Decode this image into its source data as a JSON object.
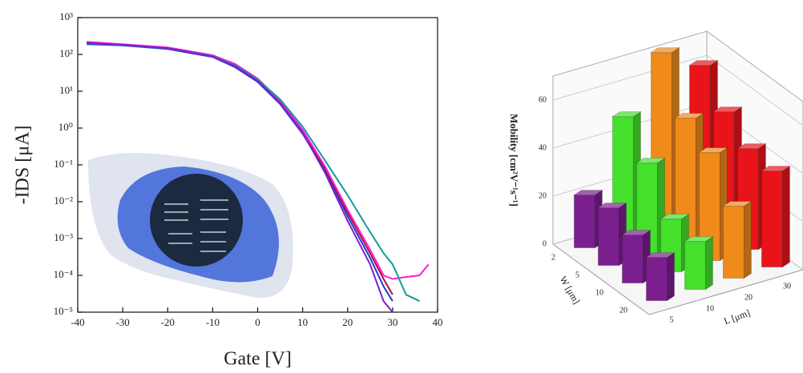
{
  "chart_data": [
    {
      "type": "line",
      "xlabel": "Gate [V]",
      "ylabel": "-IDS [μA]",
      "ylog": true,
      "x": [
        -38,
        -30,
        -20,
        -10,
        -5,
        0,
        5,
        10,
        15,
        20,
        25,
        28,
        30,
        33,
        36,
        38
      ],
      "series": [
        {
          "color": "#1f3bd6",
          "values": [
            190,
            175,
            140,
            85,
            45,
            18,
            4.5,
            0.7,
            0.07,
            0.004,
            0.0003,
            5e-05,
            2e-05,
            null,
            null,
            null
          ]
        },
        {
          "color": "#b3122c",
          "values": [
            210,
            185,
            150,
            90,
            50,
            20,
            5,
            0.8,
            0.08,
            0.005,
            0.0004,
            8e-05,
            3e-05,
            null,
            null,
            null
          ]
        },
        {
          "color": "#ff1ad9",
          "values": [
            220,
            190,
            155,
            95,
            55,
            22,
            5.5,
            0.9,
            0.09,
            0.006,
            0.0005,
            0.0001,
            8e-05,
            9e-05,
            0.0001,
            0.0002
          ]
        },
        {
          "color": "#159a9a",
          "values": [
            200,
            180,
            145,
            90,
            50,
            21,
            6,
            1.1,
            0.13,
            0.015,
            0.0015,
            0.0004,
            0.0002,
            3e-05,
            2e-05,
            null
          ]
        },
        {
          "color": "#7a1fd0",
          "values": [
            205,
            182,
            148,
            88,
            48,
            19,
            4.8,
            0.75,
            0.06,
            0.003,
            0.0002,
            2e-05,
            1e-05,
            null,
            null,
            null
          ]
        }
      ],
      "xlim": [
        -40,
        40
      ],
      "xticks": [
        -40,
        -30,
        -20,
        -10,
        0,
        10,
        20,
        30,
        40
      ],
      "ylim": [
        1e-05,
        1000
      ],
      "yticks": [
        {
          "value": 1e-05,
          "label": "10⁻⁵"
        },
        {
          "value": 0.0001,
          "label": "10⁻⁴"
        },
        {
          "value": 0.001,
          "label": "10⁻³"
        },
        {
          "value": 0.01,
          "label": "10⁻²"
        },
        {
          "value": 0.1,
          "label": "10⁻¹"
        },
        {
          "value": 1,
          "label": "10⁰"
        },
        {
          "value": 10,
          "label": "10¹"
        },
        {
          "value": 100,
          "label": "10²"
        },
        {
          "value": 1000,
          "label": "10³"
        }
      ]
    },
    {
      "type": "bar3d",
      "zlabel": "Mobility [cm²V⁻¹s⁻¹]",
      "xlabel": "W [μm]",
      "ylabel": "L [μm]",
      "categories": [
        "2",
        "5",
        "10",
        "20"
      ],
      "series": [
        {
          "name": "5",
          "color": "#7b1f8f",
          "values": [
            22,
            24,
            20,
            18
          ]
        },
        {
          "name": "10",
          "color": "#44e02c",
          "values": [
            50,
            38,
            22,
            20
          ]
        },
        {
          "name": "20",
          "color": "#f08a1a",
          "values": [
            72,
            52,
            45,
            30
          ]
        },
        {
          "name": "30",
          "color": "#e8141a",
          "values": [
            62,
            50,
            42,
            40
          ]
        }
      ],
      "zlim": [
        0,
        70
      ],
      "zticks": [
        0,
        20,
        40,
        60
      ]
    }
  ]
}
